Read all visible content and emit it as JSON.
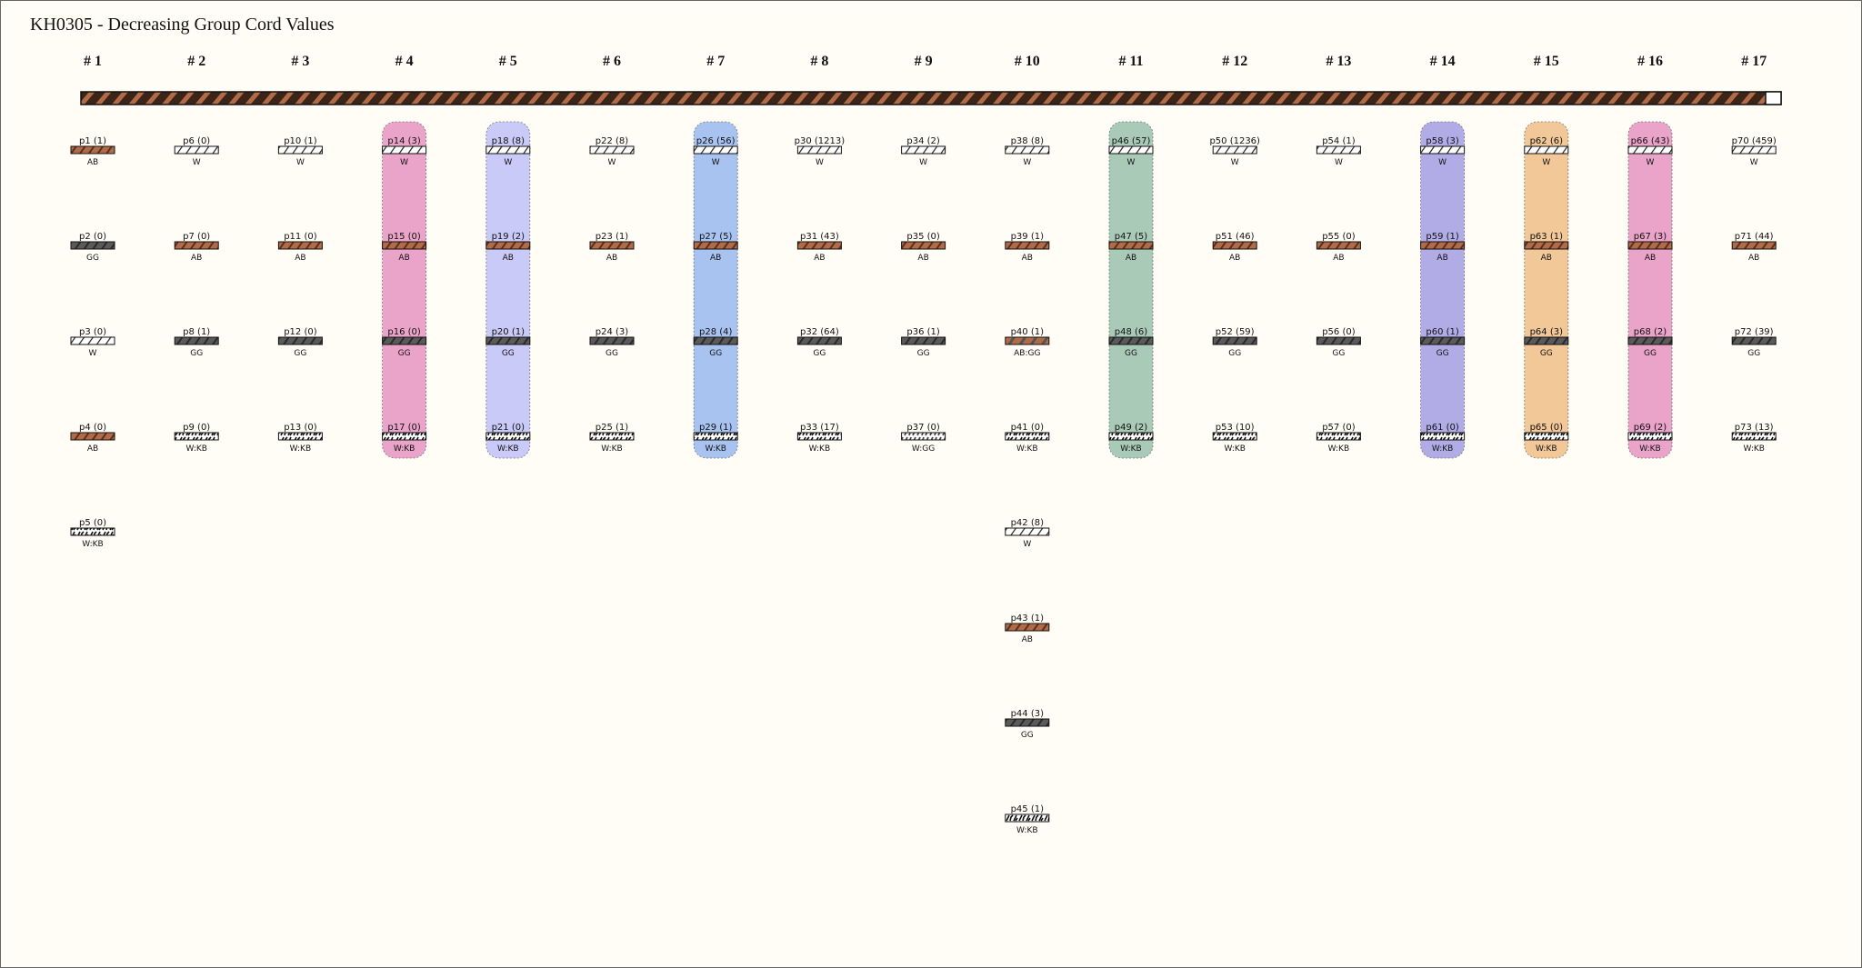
{
  "title": "KH0305 - Decreasing Group Cord Values",
  "groups": [
    {
      "label": "# 1",
      "cords": [
        {
          "label": "p1 (1)",
          "color": "AB"
        },
        {
          "label": "p2 (0)",
          "color": "GG"
        },
        {
          "label": "p3 (0)",
          "color": "W"
        },
        {
          "label": "p4 (0)",
          "color": "AB"
        },
        {
          "label": "p5 (0)",
          "color": "W:KB"
        }
      ]
    },
    {
      "label": "# 2",
      "cords": [
        {
          "label": "p6 (0)",
          "color": "W"
        },
        {
          "label": "p7 (0)",
          "color": "AB"
        },
        {
          "label": "p8 (1)",
          "color": "GG"
        },
        {
          "label": "p9 (0)",
          "color": "W:KB"
        }
      ]
    },
    {
      "label": "# 3",
      "cords": [
        {
          "label": "p10 (1)",
          "color": "W"
        },
        {
          "label": "p11 (0)",
          "color": "AB"
        },
        {
          "label": "p12 (0)",
          "color": "GG"
        },
        {
          "label": "p13 (0)",
          "color": "W:KB"
        }
      ]
    },
    {
      "label": "# 4",
      "highlight": "#eaa3c9",
      "cords": [
        {
          "label": "p14 (3)",
          "color": "W"
        },
        {
          "label": "p15 (0)",
          "color": "AB"
        },
        {
          "label": "p16 (0)",
          "color": "GG"
        },
        {
          "label": "p17 (0)",
          "color": "W:KB"
        }
      ]
    },
    {
      "label": "# 5",
      "highlight": "#cacaf8",
      "cords": [
        {
          "label": "p18 (8)",
          "color": "W"
        },
        {
          "label": "p19 (2)",
          "color": "AB"
        },
        {
          "label": "p20 (1)",
          "color": "GG"
        },
        {
          "label": "p21 (0)",
          "color": "W:KB"
        }
      ]
    },
    {
      "label": "# 6",
      "cords": [
        {
          "label": "p22 (8)",
          "color": "W"
        },
        {
          "label": "p23 (1)",
          "color": "AB"
        },
        {
          "label": "p24 (3)",
          "color": "GG"
        },
        {
          "label": "p25 (1)",
          "color": "W:KB"
        }
      ]
    },
    {
      "label": "# 7",
      "highlight": "#a8c3f0",
      "cords": [
        {
          "label": "p26 (56)",
          "color": "W"
        },
        {
          "label": "p27 (5)",
          "color": "AB"
        },
        {
          "label": "p28 (4)",
          "color": "GG"
        },
        {
          "label": "p29 (1)",
          "color": "W:KB"
        }
      ]
    },
    {
      "label": "# 8",
      "cords": [
        {
          "label": "p30 (1213)",
          "color": "W"
        },
        {
          "label": "p31 (43)",
          "color": "AB"
        },
        {
          "label": "p32 (64)",
          "color": "GG"
        },
        {
          "label": "p33 (17)",
          "color": "W:KB"
        }
      ]
    },
    {
      "label": "# 9",
      "cords": [
        {
          "label": "p34 (2)",
          "color": "W"
        },
        {
          "label": "p35 (0)",
          "color": "AB"
        },
        {
          "label": "p36 (1)",
          "color": "GG"
        },
        {
          "label": "p37 (0)",
          "color": "W:GG"
        }
      ]
    },
    {
      "label": "# 10",
      "cords": [
        {
          "label": "p38 (8)",
          "color": "W"
        },
        {
          "label": "p39 (1)",
          "color": "AB"
        },
        {
          "label": "p40 (1)",
          "color": "AB:GG"
        },
        {
          "label": "p41 (0)",
          "color": "W:KB"
        },
        {
          "label": "p42 (8)",
          "color": "W"
        },
        {
          "label": "p43 (1)",
          "color": "AB"
        },
        {
          "label": "p44 (3)",
          "color": "GG"
        },
        {
          "label": "p45 (1)",
          "color": "W:KB"
        }
      ]
    },
    {
      "label": "# 11",
      "highlight": "#aacab8",
      "cords": [
        {
          "label": "p46 (57)",
          "color": "W"
        },
        {
          "label": "p47 (5)",
          "color": "AB"
        },
        {
          "label": "p48 (6)",
          "color": "GG"
        },
        {
          "label": "p49 (2)",
          "color": "W:KB"
        }
      ]
    },
    {
      "label": "# 12",
      "cords": [
        {
          "label": "p50 (1236)",
          "color": "W"
        },
        {
          "label": "p51 (46)",
          "color": "AB"
        },
        {
          "label": "p52 (59)",
          "color": "GG"
        },
        {
          "label": "p53 (10)",
          "color": "W:KB"
        }
      ]
    },
    {
      "label": "# 13",
      "cords": [
        {
          "label": "p54 (1)",
          "color": "W"
        },
        {
          "label": "p55 (0)",
          "color": "AB"
        },
        {
          "label": "p56 (0)",
          "color": "GG"
        },
        {
          "label": "p57 (0)",
          "color": "W:KB"
        }
      ]
    },
    {
      "label": "# 14",
      "highlight": "#b1abe6",
      "cords": [
        {
          "label": "p58 (3)",
          "color": "W"
        },
        {
          "label": "p59 (1)",
          "color": "AB"
        },
        {
          "label": "p60 (1)",
          "color": "GG"
        },
        {
          "label": "p61 (0)",
          "color": "W:KB"
        }
      ]
    },
    {
      "label": "# 15",
      "highlight": "#f2c899",
      "cords": [
        {
          "label": "p62 (6)",
          "color": "W"
        },
        {
          "label": "p63 (1)",
          "color": "AB"
        },
        {
          "label": "p64 (3)",
          "color": "GG"
        },
        {
          "label": "p65 (0)",
          "color": "W:KB"
        }
      ]
    },
    {
      "label": "# 16",
      "highlight": "#eaa3c9",
      "cords": [
        {
          "label": "p66 (43)",
          "color": "W"
        },
        {
          "label": "p67 (3)",
          "color": "AB"
        },
        {
          "label": "p68 (2)",
          "color": "GG"
        },
        {
          "label": "p69 (2)",
          "color": "W:KB"
        }
      ]
    },
    {
      "label": "# 17",
      "cords": [
        {
          "label": "p70 (459)",
          "color": "W"
        },
        {
          "label": "p71 (44)",
          "color": "AB"
        },
        {
          "label": "p72 (39)",
          "color": "GG"
        },
        {
          "label": "p73 (13)",
          "color": "W:KB"
        }
      ]
    }
  ]
}
